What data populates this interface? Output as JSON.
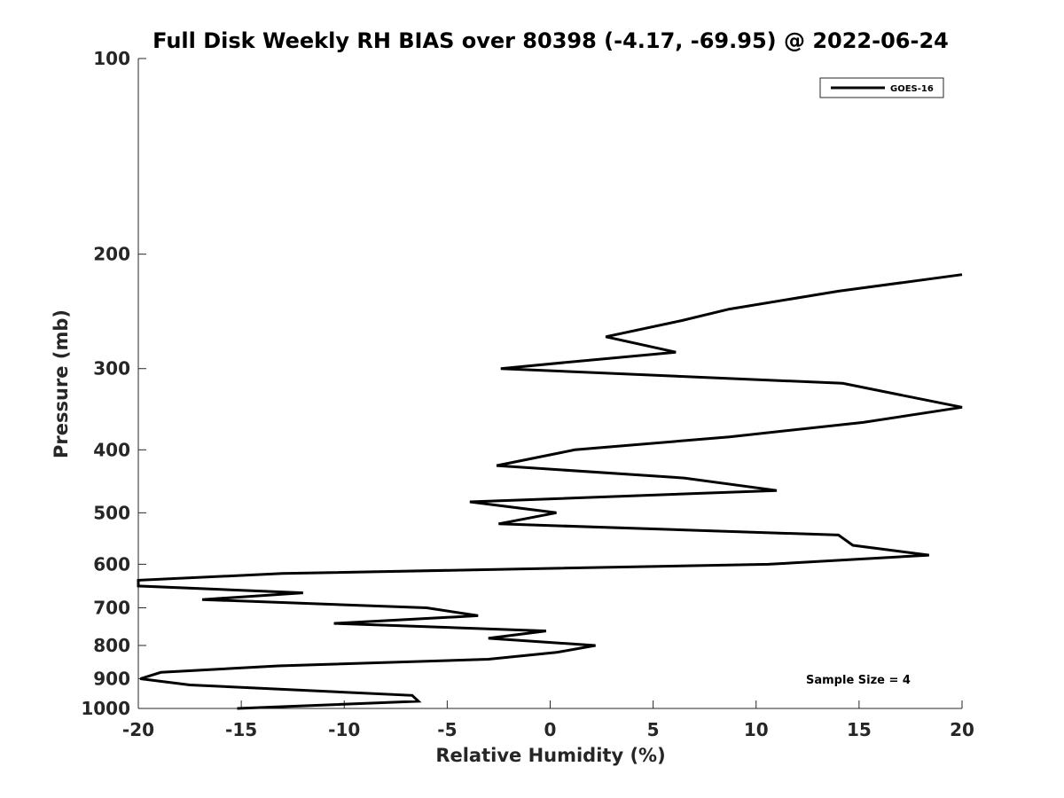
{
  "chart_data": {
    "type": "line",
    "title": "Full Disk Weekly RH BIAS over 80398 (-4.17, -69.95) @ 2022-06-24",
    "xlabel": "Relative Humidity (%)",
    "ylabel": "Pressure (mb)",
    "xlim": [
      -20,
      20
    ],
    "ylim": [
      1000,
      100
    ],
    "y_scale": "log",
    "y_reversed": true,
    "x_ticks": [
      -20,
      -15,
      -10,
      -5,
      0,
      5,
      10,
      15,
      20
    ],
    "x_tick_labels": [
      "-20",
      "-15",
      "-10",
      "-5",
      "0",
      "5",
      "10",
      "15",
      "20"
    ],
    "y_ticks": [
      100,
      200,
      300,
      400,
      500,
      600,
      700,
      800,
      900,
      1000
    ],
    "y_tick_labels": [
      "100",
      "200",
      "300",
      "400",
      "500",
      "600",
      "700",
      "800",
      "900",
      "1000"
    ],
    "grid": false,
    "legend_position": "top-right",
    "series": [
      {
        "name": "GOES-16",
        "color": "#000000",
        "points": [
          {
            "x": 20.0,
            "y": 215
          },
          {
            "x": 14.0,
            "y": 228
          },
          {
            "x": 8.7,
            "y": 243
          },
          {
            "x": 6.4,
            "y": 253
          },
          {
            "x": 2.7,
            "y": 268
          },
          {
            "x": 6.1,
            "y": 283
          },
          {
            "x": 1.5,
            "y": 292
          },
          {
            "x": -2.4,
            "y": 300
          },
          {
            "x": 6.0,
            "y": 308
          },
          {
            "x": 14.2,
            "y": 316
          },
          {
            "x": 20.0,
            "y": 344
          },
          {
            "x": 15.2,
            "y": 363
          },
          {
            "x": 8.7,
            "y": 382
          },
          {
            "x": 1.2,
            "y": 400
          },
          {
            "x": -2.6,
            "y": 423
          },
          {
            "x": 6.5,
            "y": 442
          },
          {
            "x": 11.0,
            "y": 462
          },
          {
            "x": -3.9,
            "y": 481
          },
          {
            "x": 0.3,
            "y": 500
          },
          {
            "x": -2.5,
            "y": 520
          },
          {
            "x": 14.0,
            "y": 541
          },
          {
            "x": 14.7,
            "y": 561
          },
          {
            "x": 18.4,
            "y": 581
          },
          {
            "x": 10.6,
            "y": 600
          },
          {
            "x": -13.0,
            "y": 620
          },
          {
            "x": -20.0,
            "y": 635
          },
          {
            "x": -20.0,
            "y": 648
          },
          {
            "x": -12.0,
            "y": 664
          },
          {
            "x": -16.9,
            "y": 680
          },
          {
            "x": -6.0,
            "y": 700
          },
          {
            "x": -3.5,
            "y": 720
          },
          {
            "x": -10.5,
            "y": 740
          },
          {
            "x": -0.2,
            "y": 760
          },
          {
            "x": -3.0,
            "y": 780
          },
          {
            "x": 2.2,
            "y": 800
          },
          {
            "x": 0.3,
            "y": 820
          },
          {
            "x": -3.0,
            "y": 840
          },
          {
            "x": -13.2,
            "y": 860
          },
          {
            "x": -18.9,
            "y": 880
          },
          {
            "x": -19.9,
            "y": 900
          },
          {
            "x": -17.5,
            "y": 920
          },
          {
            "x": -6.7,
            "y": 955
          },
          {
            "x": -6.4,
            "y": 975
          },
          {
            "x": -15.2,
            "y": 1000
          }
        ]
      }
    ],
    "annotations": [
      {
        "text": "Sample Size = 4"
      }
    ]
  }
}
